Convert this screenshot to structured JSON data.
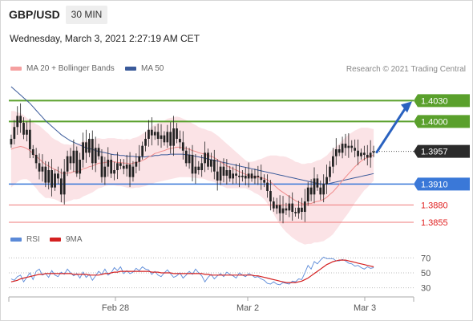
{
  "header": {
    "symbol": "GBP/USD",
    "timeframe": "30 MIN",
    "datetime": "Wednesday, March 3, 2021 2:27:19 AM CET"
  },
  "legend": {
    "ma20": "MA 20 + Bollinger Bands",
    "ma50": "MA 50",
    "credit": "Research © 2021 Trading Central"
  },
  "rsi_legend": {
    "rsi": "RSI",
    "ma9": "9MA"
  },
  "colors": {
    "candle": "#222222",
    "bollinger_band": "#fadadd",
    "ma20": "#f08c8c",
    "ma50": "#3a5a9a",
    "resistance": "#5aa02c",
    "support": "#3a78d8",
    "pivot_red": "#ef7a7a",
    "arrow": "#2a62c0",
    "rsi": "#5b8ad8",
    "rsi_ma": "#d42020"
  },
  "chart_data": [
    {
      "type": "candlestick",
      "instrument": "GBP/USD",
      "timeframe": "30 MIN",
      "ylim": [
        1.384,
        1.4065
      ],
      "x_ticks": [
        "Feb 28",
        "Mar 2",
        "Mar 3"
      ],
      "levels": [
        {
          "label": "1.4030",
          "value": 1.403,
          "role": "resistance"
        },
        {
          "label": "1.4000",
          "value": 1.4,
          "role": "resistance"
        },
        {
          "label": "1.3957",
          "value": 1.3957,
          "role": "last"
        },
        {
          "label": "1.3910",
          "value": 1.391,
          "role": "pivot"
        },
        {
          "label": "1.3880",
          "value": 1.388,
          "role": "support"
        },
        {
          "label": "1.3855",
          "value": 1.3855,
          "role": "support"
        }
      ],
      "close": [
        1.3975,
        1.3992,
        1.4008,
        1.3998,
        1.3981,
        1.3988,
        1.396,
        1.3952,
        1.394,
        1.3928,
        1.3935,
        1.3912,
        1.393,
        1.3905,
        1.3925,
        1.3918,
        1.3895,
        1.3928,
        1.395,
        1.394,
        1.3958,
        1.3925,
        1.3945,
        1.397,
        1.3955,
        1.3975,
        1.394,
        1.3962,
        1.395,
        1.392,
        1.3935,
        1.3945,
        1.3925,
        1.393,
        1.394,
        1.3936,
        1.3932,
        1.3938,
        1.392,
        1.3935,
        1.3942,
        1.395,
        1.3965,
        1.3975,
        1.3988,
        1.398,
        1.3985,
        1.3975,
        1.398,
        1.397,
        1.3985,
        1.3965,
        1.399,
        1.3975,
        1.397,
        1.3958,
        1.394,
        1.3952,
        1.3925,
        1.3935,
        1.393,
        1.394,
        1.3955,
        1.3935,
        1.3945,
        1.3928,
        1.3915,
        1.3935,
        1.3922,
        1.393,
        1.3918,
        1.3925,
        1.3922,
        1.392,
        1.3922,
        1.3918,
        1.3925,
        1.3918,
        1.3922,
        1.392,
        1.3916,
        1.3912,
        1.39,
        1.3885,
        1.3875,
        1.388,
        1.3868,
        1.3875,
        1.3872,
        1.3882,
        1.387,
        1.3868,
        1.3876,
        1.387,
        1.3885,
        1.3905,
        1.3895,
        1.3918,
        1.3905,
        1.3895,
        1.391,
        1.392,
        1.3935,
        1.395,
        1.396,
        1.3955,
        1.3968,
        1.3962,
        1.3965,
        1.3962,
        1.3958,
        1.395,
        1.3955,
        1.3952,
        1.3948,
        1.3955,
        1.3957
      ],
      "ma20": [
        1.396,
        1.3962,
        1.3963,
        1.3964,
        1.3963,
        1.3961,
        1.3958,
        1.3954,
        1.395,
        1.3946,
        1.3942,
        1.3938,
        1.3936,
        1.3933,
        1.3931,
        1.3929,
        1.3926,
        1.3925,
        1.3926,
        1.3926,
        1.3928,
        1.3928,
        1.3929,
        1.3932,
        1.3933,
        1.3935,
        1.3936,
        1.3938,
        1.394,
        1.394,
        1.3941,
        1.3942,
        1.3942,
        1.3942,
        1.3941,
        1.3941,
        1.394,
        1.394,
        1.3939,
        1.394,
        1.3941,
        1.3942,
        1.3944,
        1.3946,
        1.3949,
        1.3951,
        1.3954,
        1.3955,
        1.3957,
        1.3958,
        1.396,
        1.3961,
        1.3962,
        1.3963,
        1.3963,
        1.3962,
        1.3961,
        1.396,
        1.3958,
        1.3957,
        1.3955,
        1.3954,
        1.3953,
        1.3951,
        1.395,
        1.3948,
        1.3945,
        1.3942,
        1.3939,
        1.3936,
        1.3934,
        1.3932,
        1.393,
        1.3928,
        1.3926,
        1.3924,
        1.3922,
        1.3921,
        1.392,
        1.392,
        1.3919,
        1.3918,
        1.3916,
        1.3913,
        1.3909,
        1.3905,
        1.3901,
        1.3898,
        1.3895,
        1.3892,
        1.3889,
        1.3886,
        1.3884,
        1.3882,
        1.3881,
        1.3882,
        1.3882,
        1.3884,
        1.3885,
        1.3886,
        1.3888,
        1.3891,
        1.3895,
        1.3899,
        1.3904,
        1.3909,
        1.3915,
        1.392,
        1.3925,
        1.393,
        1.3935,
        1.3939,
        1.3943,
        1.3946,
        1.3948,
        1.395,
        1.3952
      ],
      "bb_width": [
        0.0055,
        0.0053,
        0.005,
        0.0048,
        0.0046,
        0.0044,
        0.0044,
        0.0045,
        0.0046,
        0.0048,
        0.0048,
        0.0048,
        0.0046,
        0.0044,
        0.0043,
        0.0043,
        0.0043,
        0.0042,
        0.0041,
        0.004,
        0.004,
        0.004,
        0.004,
        0.004,
        0.0039,
        0.0039,
        0.0038,
        0.0037,
        0.0036,
        0.0035,
        0.0034,
        0.0034,
        0.0034,
        0.0034,
        0.0034,
        0.0034,
        0.0034,
        0.0035,
        0.0035,
        0.0036,
        0.0036,
        0.0037,
        0.0038,
        0.0039,
        0.004,
        0.0041,
        0.0042,
        0.0042,
        0.0043,
        0.0043,
        0.0044,
        0.0044,
        0.0044,
        0.0044,
        0.0043,
        0.0042,
        0.0041,
        0.004,
        0.0039,
        0.0038,
        0.0037,
        0.0036,
        0.0036,
        0.0036,
        0.0036,
        0.0035,
        0.0035,
        0.0034,
        0.0033,
        0.0032,
        0.003,
        0.0028,
        0.0026,
        0.0024,
        0.0022,
        0.002,
        0.002,
        0.0021,
        0.0023,
        0.0025,
        0.0027,
        0.003,
        0.0034,
        0.0038,
        0.0042,
        0.0046,
        0.0049,
        0.0052,
        0.0054,
        0.0055,
        0.0056,
        0.0056,
        0.0057,
        0.0057,
        0.0058,
        0.0058,
        0.0058,
        0.0058,
        0.0059,
        0.0059,
        0.006,
        0.006,
        0.0061,
        0.0061,
        0.006,
        0.0059,
        0.0058,
        0.0057,
        0.0056,
        0.0054,
        0.0052,
        0.005,
        0.0048,
        0.0045,
        0.0043,
        0.004,
        0.0037
      ],
      "ma50": [
        1.405,
        1.4046,
        1.4042,
        1.4038,
        1.4034,
        1.403,
        1.4026,
        1.4021,
        1.4016,
        1.4011,
        1.4006,
        1.4001,
        1.3997,
        1.3993,
        1.3989,
        1.3985,
        1.3981,
        1.3978,
        1.3975,
        1.3972,
        1.397,
        1.3968,
        1.3966,
        1.3964,
        1.3962,
        1.3961,
        1.396,
        1.3958,
        1.3957,
        1.3956,
        1.3955,
        1.3954,
        1.3953,
        1.3952,
        1.3952,
        1.3951,
        1.3951,
        1.395,
        1.395,
        1.395,
        1.3949,
        1.3949,
        1.3949,
        1.3949,
        1.395,
        1.395,
        1.3951,
        1.3951,
        1.3952,
        1.3952,
        1.3952,
        1.3953,
        1.3953,
        1.3953,
        1.3953,
        1.3953,
        1.3952,
        1.3952,
        1.3951,
        1.395,
        1.3949,
        1.3948,
        1.3947,
        1.3946,
        1.3945,
        1.3944,
        1.3943,
        1.3942,
        1.3941,
        1.394,
        1.3939,
        1.3938,
        1.3937,
        1.3936,
        1.3935,
        1.3934,
        1.3933,
        1.3932,
        1.3931,
        1.393,
        1.3929,
        1.3928,
        1.3927,
        1.3926,
        1.3925,
        1.3924,
        1.3923,
        1.3922,
        1.3921,
        1.392,
        1.3919,
        1.3918,
        1.3917,
        1.3916,
        1.3915,
        1.3914,
        1.3913,
        1.3912,
        1.3911,
        1.391,
        1.391,
        1.391,
        1.3911,
        1.3912,
        1.3913,
        1.3914,
        1.3915,
        1.3916,
        1.3917,
        1.3918,
        1.3919,
        1.392,
        1.3921,
        1.3922,
        1.3923,
        1.3924,
        1.3925
      ],
      "projection": {
        "from": 1.3957,
        "to": 1.403
      }
    },
    {
      "type": "line",
      "name": "RSI",
      "ylim": [
        20,
        80
      ],
      "y_ticks": [
        70,
        50,
        30
      ],
      "series": [
        {
          "name": "RSI",
          "values": [
            42,
            40,
            45,
            47,
            38,
            44,
            50,
            41,
            52,
            55,
            47,
            49,
            44,
            53,
            47,
            45,
            51,
            48,
            55,
            50,
            46,
            49,
            43,
            51,
            44,
            48,
            40,
            46,
            52,
            48,
            55,
            47,
            50,
            57,
            53,
            58,
            49,
            53,
            49,
            51,
            56,
            53,
            58,
            55,
            54,
            48,
            52,
            47,
            45,
            50,
            54,
            49,
            44,
            46,
            50,
            43,
            47,
            52,
            48,
            55,
            50,
            46,
            38,
            44,
            48,
            42,
            46,
            49,
            45,
            51,
            48,
            46,
            43,
            50,
            47,
            45,
            49,
            47,
            44,
            45,
            42,
            40,
            36,
            35,
            38,
            35,
            34,
            37,
            36,
            35,
            39,
            38,
            42,
            41,
            50,
            60,
            55,
            65,
            62,
            67,
            71,
            69,
            69,
            69,
            66,
            66,
            68,
            66,
            63,
            62,
            59,
            60,
            57,
            55,
            58,
            56,
            57
          ]
        },
        {
          "name": "9MA",
          "values": [
            38,
            39,
            40,
            42,
            43,
            44,
            45,
            46,
            47,
            48,
            48,
            49,
            49,
            49,
            49,
            49,
            49,
            49,
            49,
            49,
            48,
            48,
            48,
            48,
            48,
            47,
            47,
            47,
            47,
            48,
            49,
            49,
            50,
            51,
            51,
            52,
            52,
            52,
            52,
            52,
            52,
            52,
            52,
            52,
            52,
            51,
            51,
            51,
            50,
            50,
            50,
            50,
            49,
            49,
            49,
            49,
            49,
            49,
            49,
            49,
            49,
            49,
            48,
            48,
            47,
            47,
            47,
            47,
            47,
            47,
            47,
            47,
            47,
            47,
            47,
            47,
            47,
            47,
            46,
            46,
            45,
            44,
            43,
            42,
            41,
            40,
            39,
            38,
            37,
            37,
            37,
            37,
            38,
            39,
            41,
            43,
            46,
            49,
            52,
            55,
            58,
            61,
            63,
            65,
            66,
            67,
            67,
            67,
            66,
            65,
            64,
            63,
            62,
            61,
            60,
            59,
            58
          ]
        }
      ]
    }
  ]
}
